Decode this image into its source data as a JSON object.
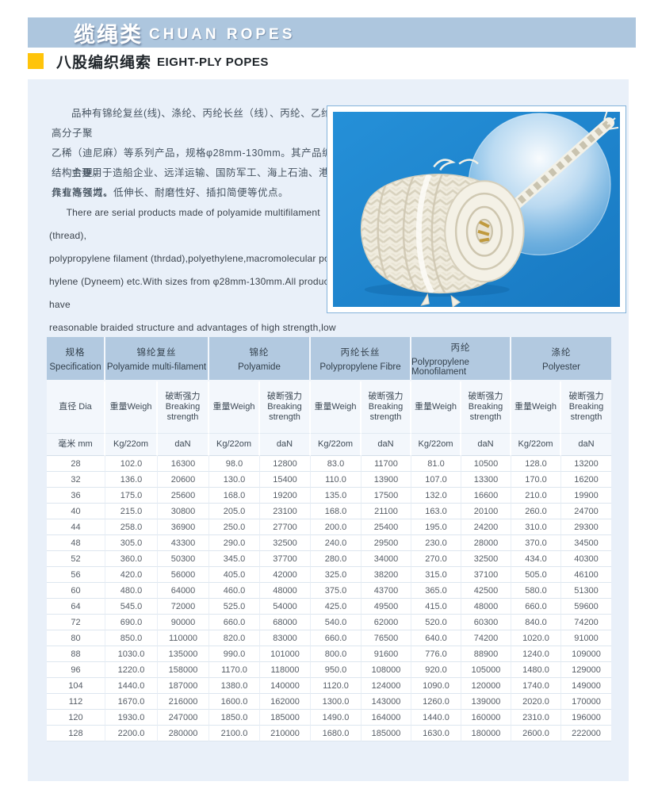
{
  "theme": {
    "band_blue": "#adc6de",
    "header_blue": "#b2c9e0",
    "panel_bg": "#e9f0f9",
    "accent_yellow": "#ffc40a",
    "photo_blue": "#1e87d1"
  },
  "header": {
    "title_cn": "缆绳类",
    "title_en": "CHUAN ROPES",
    "subtitle_cn": "八股编织绳索",
    "subtitle_en": "EIGHT-PLY POPES"
  },
  "intro": {
    "cn_para1": "品种有锦纶复丝(线)、涤纶、丙纶长丝（线）、丙纶、乙纶、高分子聚\n乙稀（迪尼麻）等系列产品，规格φ28mm-130mm。其产品编织结构合理，\n具有高强力、低伸长、耐磨性好、插扣简便等优点。",
    "cn_para2": "主要用于造船企业、远洋运输、国防军工、海上石油、港口作业等领域。",
    "en_para1": "There are serial products made of polyamide multifilament (thread),\npolypropylene filament (thrdad),polyethylene,macromolecular polyet-\nhylene (Dyneem) etc.With sizes from φ28mm-130mm.All products have\nreasonable braided structure and advantages of high strength,low elo-\nngation,good wearing resistance and easy  inserting and fastening etc.\nAll products are mainly used in shipbuilding,ocean transportation,\nnational defense and military industry,ocean petroleum,harbor works etc."
  },
  "photo": {
    "description": "white eight-ply braided rope coil on blue background with light circle"
  },
  "table": {
    "groups": [
      {
        "cn": "规格",
        "en": "Specification"
      },
      {
        "cn": "锦纶复丝",
        "en": "Polyamide multi-filament"
      },
      {
        "cn": "锦纶",
        "en": "Polyamide"
      },
      {
        "cn": "丙纶长丝",
        "en": "Polypropylene Fibre"
      },
      {
        "cn": "丙纶",
        "en": "Polypropylene Monofilament"
      },
      {
        "cn": "涤纶",
        "en": "Polyester"
      }
    ],
    "sub_headers": {
      "dia": "直径 Dia",
      "weight": "重量Weigh",
      "strength_cn": "破断强力",
      "strength_en_1": "Breaking",
      "strength_en_2": "strength"
    },
    "units": {
      "mm": "毫米 mm",
      "weight": "Kg/22om",
      "strength": "daN"
    },
    "rows": [
      [
        "28",
        "102.0",
        "16300",
        "98.0",
        "12800",
        "83.0",
        "11700",
        "81.0",
        "10500",
        "128.0",
        "13200"
      ],
      [
        "32",
        "136.0",
        "20600",
        "130.0",
        "15400",
        "110.0",
        "13900",
        "107.0",
        "13300",
        "170.0",
        "16200"
      ],
      [
        "36",
        "175.0",
        "25600",
        "168.0",
        "19200",
        "135.0",
        "17500",
        "132.0",
        "16600",
        "210.0",
        "19900"
      ],
      [
        "40",
        "215.0",
        "30800",
        "205.0",
        "23100",
        "168.0",
        "21100",
        "163.0",
        "20100",
        "260.0",
        "24700"
      ],
      [
        "44",
        "258.0",
        "36900",
        "250.0",
        "27700",
        "200.0",
        "25400",
        "195.0",
        "24200",
        "310.0",
        "29300"
      ],
      [
        "48",
        "305.0",
        "43300",
        "290.0",
        "32500",
        "240.0",
        "29500",
        "230.0",
        "28000",
        "370.0",
        "34500"
      ],
      [
        "52",
        "360.0",
        "50300",
        "345.0",
        "37700",
        "280.0",
        "34000",
        "270.0",
        "32500",
        "434.0",
        "40300"
      ],
      [
        "56",
        "420.0",
        "56000",
        "405.0",
        "42000",
        "325.0",
        "38200",
        "315.0",
        "37100",
        "505.0",
        "46100"
      ],
      [
        "60",
        "480.0",
        "64000",
        "460.0",
        "48000",
        "375.0",
        "43700",
        "365.0",
        "42500",
        "580.0",
        "51300"
      ],
      [
        "64",
        "545.0",
        "72000",
        "525.0",
        "54000",
        "425.0",
        "49500",
        "415.0",
        "48000",
        "660.0",
        "59600"
      ],
      [
        "72",
        "690.0",
        "90000",
        "660.0",
        "68000",
        "540.0",
        "62000",
        "520.0",
        "60300",
        "840.0",
        "74200"
      ],
      [
        "80",
        "850.0",
        "110000",
        "820.0",
        "83000",
        "660.0",
        "76500",
        "640.0",
        "74200",
        "1020.0",
        "91000"
      ],
      [
        "88",
        "1030.0",
        "135000",
        "990.0",
        "101000",
        "800.0",
        "91600",
        "776.0",
        "88900",
        "1240.0",
        "109000"
      ],
      [
        "96",
        "1220.0",
        "158000",
        "1170.0",
        "118000",
        "950.0",
        "108000",
        "920.0",
        "105000",
        "1480.0",
        "129000"
      ],
      [
        "104",
        "1440.0",
        "187000",
        "1380.0",
        "140000",
        "1120.0",
        "124000",
        "1090.0",
        "120000",
        "1740.0",
        "149000"
      ],
      [
        "112",
        "1670.0",
        "216000",
        "1600.0",
        "162000",
        "1300.0",
        "143000",
        "1260.0",
        "139000",
        "2020.0",
        "170000"
      ],
      [
        "120",
        "1930.0",
        "247000",
        "1850.0",
        "185000",
        "1490.0",
        "164000",
        "1440.0",
        "160000",
        "2310.0",
        "196000"
      ],
      [
        "128",
        "2200.0",
        "280000",
        "2100.0",
        "210000",
        "1680.0",
        "185000",
        "1630.0",
        "180000",
        "2600.0",
        "222000"
      ]
    ]
  }
}
